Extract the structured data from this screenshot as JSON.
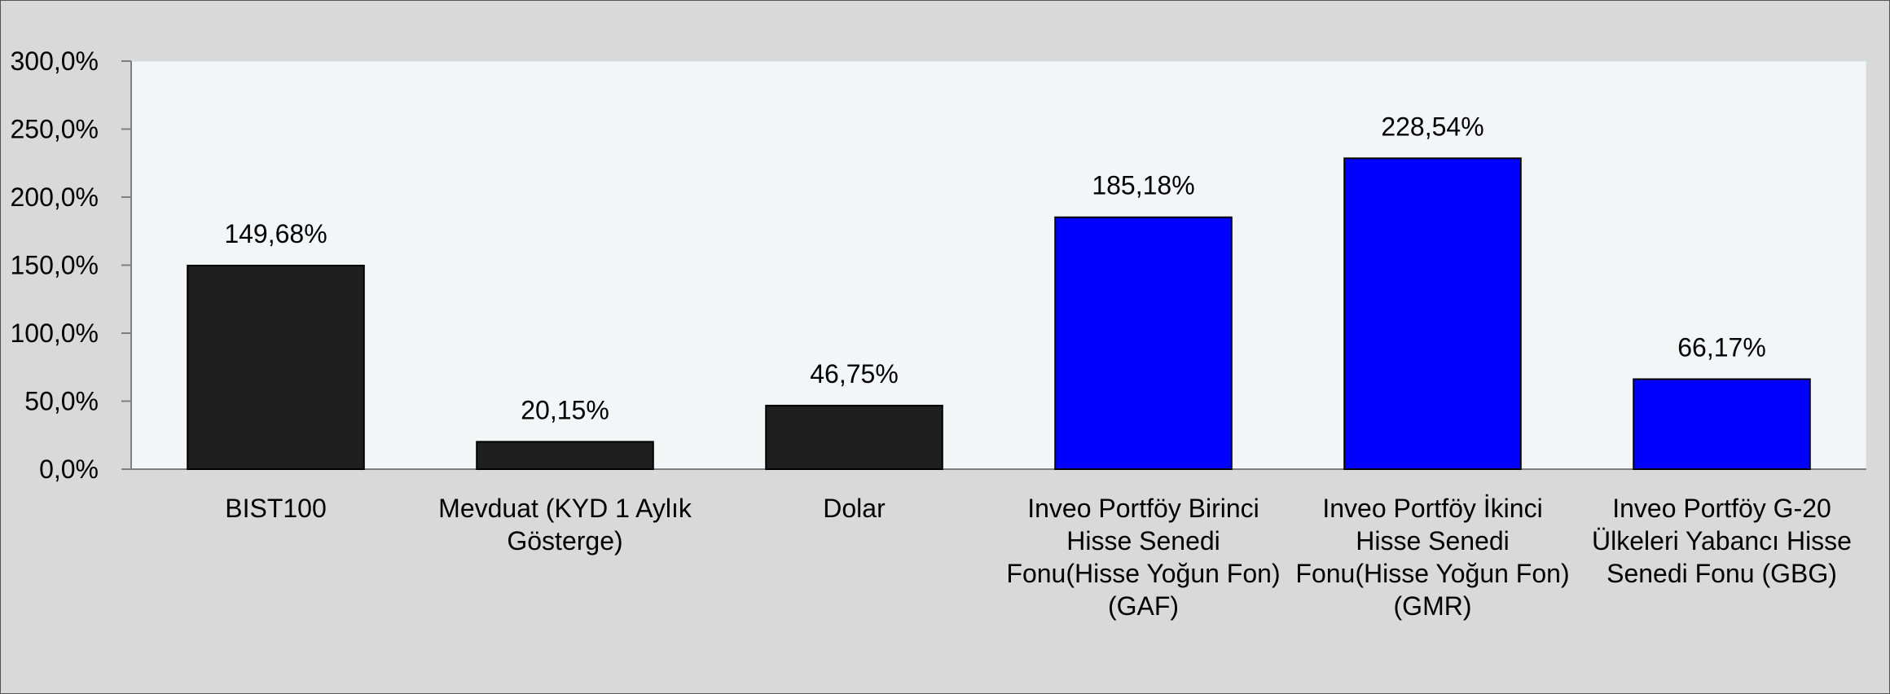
{
  "chart_data": {
    "type": "bar",
    "categories": [
      "BIST100",
      "Mevduat (KYD 1 Aylık Gösterge)",
      "Dolar",
      "Inveo Portföy Birinci Hisse Senedi Fonu(Hisse Yoğun Fon) (GAF)",
      "Inveo Portföy İkinci Hisse Senedi Fonu(Hisse Yoğun Fon) (GMR)",
      "Inveo Portföy G-20 Ülkeleri Yabancı Hisse Senedi Fonu (GBG)"
    ],
    "category_lines": [
      [
        "BIST100"
      ],
      [
        "Mevduat (KYD 1 Aylık",
        "Gösterge)"
      ],
      [
        "Dolar"
      ],
      [
        "Inveo Portföy Birinci",
        "Hisse Senedi",
        "Fonu(Hisse Yoğun Fon)",
        "(GAF)"
      ],
      [
        "Inveo Portföy İkinci",
        "Hisse Senedi",
        "Fonu(Hisse Yoğun Fon)",
        "(GMR)"
      ],
      [
        "Inveo Portföy G-20",
        "Ülkeleri Yabancı Hisse",
        "Senedi Fonu (GBG)"
      ]
    ],
    "values": [
      149.68,
      20.15,
      46.75,
      185.18,
      228.54,
      66.17
    ],
    "data_labels": [
      "149,68%",
      "20,15%",
      "46,75%",
      "185,18%",
      "228,54%",
      "66,17%"
    ],
    "bar_colors": [
      "#1f1f1f",
      "#1f1f1f",
      "#1f1f1f",
      "#0000ff",
      "#0000ff",
      "#0000ff"
    ],
    "y_ticks": [
      0,
      50,
      100,
      150,
      200,
      250,
      300
    ],
    "y_tick_labels": [
      "0,0%",
      "50,0%",
      "100,0%",
      "150,0%",
      "200,0%",
      "250,0%",
      "300,0%"
    ],
    "ylim": [
      0,
      300
    ],
    "title": "",
    "xlabel": "",
    "ylabel": "",
    "grid": false,
    "legend": "none",
    "colors": {
      "background": "#d9d9d9",
      "plot_background": "#f2f6f6",
      "axis": "#7f7f7f"
    }
  }
}
